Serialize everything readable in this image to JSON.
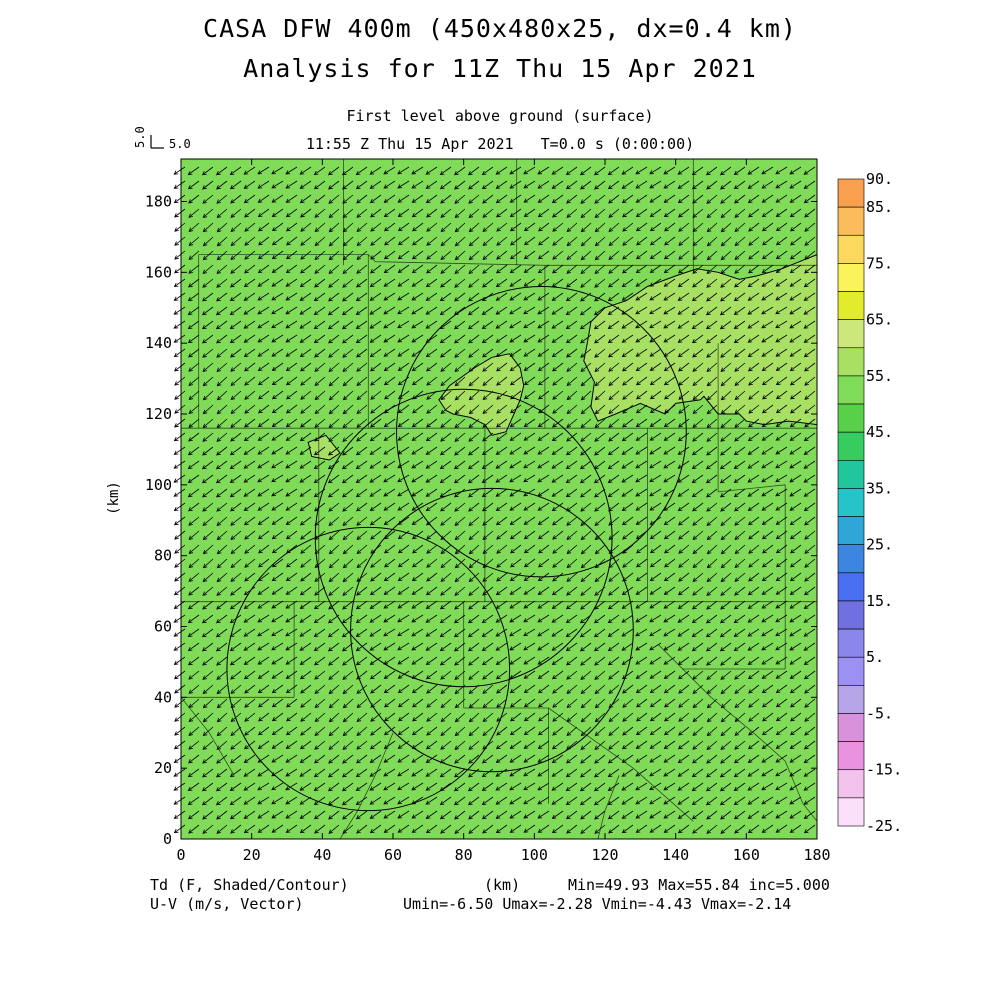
{
  "header": {
    "title_line1": "CASA DFW 400m (450x480x25, dx=0.4 km)",
    "title_line2": "Analysis for 11Z Thu 15 Apr 2021",
    "subtitle_level": "First level above ground (surface)",
    "subtitle_time": "11:55 Z Thu 15 Apr 2021   T=0.0 s (0:00:00)"
  },
  "reference_vector": {
    "label": "5.0",
    "axis_label": "5.0"
  },
  "footer": {
    "left_line1": "Td (F, Shaded/Contour)",
    "left_line2": "U-V (m/s, Vector)",
    "center": "(km)",
    "right_line1": "Min=49.93 Max=55.84 inc=5.000",
    "right_line2": "Umin=-6.50 Umax=-2.28 Vmin=-4.43 Vmax=-2.14"
  },
  "colors": {
    "field_main": "#80dc58",
    "field_high": "#a8e064",
    "contour": "#000000",
    "vector": "#000000"
  },
  "chart_data": {
    "type": "heatmap",
    "variable": "Td (F, Shaded/Contour)",
    "vector_variable": "U-V (m/s, Vector)",
    "xlabel": "",
    "ylabel": "(km)",
    "xlim": [
      0,
      180
    ],
    "ylim": [
      0,
      192
    ],
    "xticks": [
      0,
      20,
      40,
      60,
      80,
      100,
      120,
      140,
      160,
      180
    ],
    "yticks": [
      0,
      20,
      40,
      60,
      80,
      100,
      120,
      140,
      160,
      180
    ],
    "field_min": 49.93,
    "field_max": 55.84,
    "contour_interval": 5.0,
    "vector_stats": {
      "umin": -6.5,
      "umax": -2.28,
      "vmin": -4.43,
      "vmax": -2.14
    },
    "mean_wind_uv": [
      -4.4,
      -3.3
    ],
    "contour_55_regions": [
      {
        "name": "north-central",
        "points": [
          [
            77,
            120
          ],
          [
            75,
            121
          ],
          [
            73,
            124
          ],
          [
            76,
            128
          ],
          [
            83,
            133
          ],
          [
            88,
            136
          ],
          [
            93,
            137
          ],
          [
            96,
            133
          ],
          [
            97,
            128
          ],
          [
            96,
            124
          ],
          [
            92,
            115
          ],
          [
            88,
            114
          ],
          [
            86,
            117
          ],
          [
            82,
            119
          ]
        ]
      },
      {
        "name": "northeast",
        "points": [
          [
            116,
            146
          ],
          [
            120,
            150
          ],
          [
            126,
            152
          ],
          [
            132,
            156
          ],
          [
            140,
            159
          ],
          [
            146,
            161
          ],
          [
            152,
            160
          ],
          [
            158,
            158
          ],
          [
            163,
            159
          ],
          [
            170,
            161
          ],
          [
            175,
            163
          ],
          [
            180,
            165
          ],
          [
            180,
            117
          ],
          [
            172,
            118
          ],
          [
            165,
            117
          ],
          [
            160,
            118
          ],
          [
            158,
            120
          ],
          [
            152,
            120
          ],
          [
            148,
            125
          ],
          [
            147,
            124
          ],
          [
            140,
            123
          ],
          [
            137,
            120
          ],
          [
            130,
            123
          ],
          [
            123,
            120
          ],
          [
            118,
            118
          ],
          [
            116,
            122
          ],
          [
            117,
            129
          ],
          [
            114,
            135
          ],
          [
            115,
            140
          ]
        ]
      },
      {
        "name": "west-small",
        "points": [
          [
            37,
            108
          ],
          [
            36,
            112
          ],
          [
            41,
            114
          ],
          [
            45,
            109
          ],
          [
            42,
            107
          ]
        ]
      }
    ],
    "range_rings": [
      {
        "center": [
          102,
          115
        ],
        "radius_km": 41
      },
      {
        "center": [
          80,
          85
        ],
        "radius_km": 42
      },
      {
        "center": [
          88,
          59
        ],
        "radius_km": 40
      },
      {
        "center": [
          53,
          48
        ],
        "radius_km": 40
      }
    ],
    "colorbar": {
      "labels": [
        "90.",
        "85.",
        "75.",
        "65.",
        "55.",
        "45.",
        "35.",
        "25.",
        "15.",
        "5.",
        "-5.",
        "-15.",
        "-25."
      ],
      "bands": [
        {
          "from": 85,
          "to": 90,
          "color": "#f9a04f"
        },
        {
          "from": 80,
          "to": 85,
          "color": "#fbbd5c"
        },
        {
          "from": 75,
          "to": 80,
          "color": "#fcd95e"
        },
        {
          "from": 70,
          "to": 75,
          "color": "#fbf35a"
        },
        {
          "from": 65,
          "to": 70,
          "color": "#e2eb2c"
        },
        {
          "from": 60,
          "to": 65,
          "color": "#cde87a"
        },
        {
          "from": 55,
          "to": 60,
          "color": "#a8e064"
        },
        {
          "from": 50,
          "to": 55,
          "color": "#80dc58"
        },
        {
          "from": 45,
          "to": 50,
          "color": "#58d04a"
        },
        {
          "from": 40,
          "to": 45,
          "color": "#36cc60"
        },
        {
          "from": 35,
          "to": 40,
          "color": "#22c69c"
        },
        {
          "from": 30,
          "to": 35,
          "color": "#26c4c8"
        },
        {
          "from": 25,
          "to": 30,
          "color": "#2ea6d8"
        },
        {
          "from": 20,
          "to": 25,
          "color": "#3c86e2"
        },
        {
          "from": 15,
          "to": 20,
          "color": "#4a6ef0"
        },
        {
          "from": 10,
          "to": 15,
          "color": "#7070e0"
        },
        {
          "from": 5,
          "to": 10,
          "color": "#8a86ea"
        },
        {
          "from": 0,
          "to": 5,
          "color": "#9c90f2"
        },
        {
          "from": -5,
          "to": 0,
          "color": "#b6a4e8"
        },
        {
          "from": -10,
          "to": -5,
          "color": "#d892dc"
        },
        {
          "from": -15,
          "to": -10,
          "color": "#e892e0"
        },
        {
          "from": -20,
          "to": -15,
          "color": "#f2c2ec"
        },
        {
          "from": -25,
          "to": -20,
          "color": "#fce0fa"
        }
      ]
    }
  }
}
